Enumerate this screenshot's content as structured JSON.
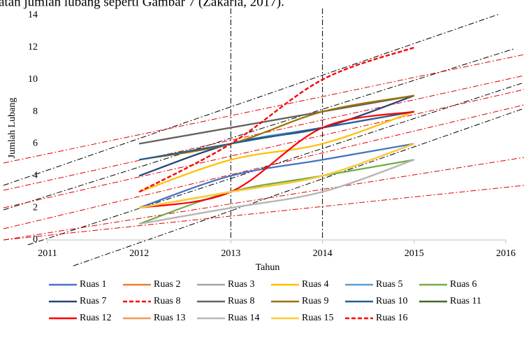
{
  "header_text": "atan jumlah lubang seperti Gambar 7 (Zakaria, 2017).",
  "chart_data": {
    "type": "line",
    "x_label": "Tahun",
    "y_label": "Jumlah Lubang",
    "x": [
      2012,
      2013,
      2014,
      2015
    ],
    "xlim": [
      2011,
      2016
    ],
    "xticks": [
      2011,
      2012,
      2013,
      2014,
      2015,
      2016
    ],
    "ylim": [
      0,
      14
    ],
    "yticks": [
      0,
      2,
      4,
      6,
      8,
      10,
      12,
      14
    ],
    "vlines": [
      2013,
      2014
    ],
    "smooth": true,
    "series": [
      {
        "name": "Ruas 1",
        "color": "#4472c4",
        "values": [
          2,
          4,
          5,
          6
        ]
      },
      {
        "name": "Ruas 2",
        "color": "#ed7d31",
        "values": [
          6,
          7,
          8,
          9
        ]
      },
      {
        "name": "Ruas 3",
        "color": "#a5a5a5",
        "values": [
          1,
          2,
          3,
          5
        ]
      },
      {
        "name": "Ruas 4",
        "color": "#ffc000",
        "values": [
          3,
          5,
          6,
          8
        ]
      },
      {
        "name": "Ruas 5",
        "color": "#5b9bd5",
        "values": [
          4,
          6,
          7,
          8
        ]
      },
      {
        "name": "Ruas 6",
        "color": "#70ad47",
        "values": [
          1,
          3,
          4,
          5
        ]
      },
      {
        "name": "Ruas 7",
        "color": "#264478",
        "values": [
          4,
          6,
          7,
          9
        ]
      },
      {
        "name": "Ruas 8",
        "color": "#ff0000",
        "line_style": "dashed",
        "values": [
          3,
          6,
          10,
          12
        ]
      },
      {
        "name": "Ruas 8",
        "color": "#636363",
        "values": [
          6,
          7,
          8,
          9
        ]
      },
      {
        "name": "Ruas 9",
        "color": "#997300",
        "values": [
          5,
          6,
          8,
          9
        ]
      },
      {
        "name": "Ruas 10",
        "color": "#255e91",
        "values": [
          5,
          6,
          7,
          8
        ]
      },
      {
        "name": "Ruas 11",
        "color": "#43682b",
        "values": [
          2,
          3,
          4,
          6
        ]
      },
      {
        "name": "Ruas 12",
        "color": "#ff0000",
        "values": [
          2,
          3,
          7,
          8
        ]
      },
      {
        "name": "Ruas 13",
        "color": "#f1975a",
        "values": [
          2,
          3,
          4,
          6
        ]
      },
      {
        "name": "Ruas 14",
        "color": "#b7b7b7",
        "values": [
          1,
          2,
          3,
          5
        ]
      },
      {
        "name": "Ruas 15",
        "color": "#ffcd33",
        "values": [
          2,
          3,
          4,
          6
        ]
      },
      {
        "name": "Ruas 16",
        "color": "#ff0000",
        "line_style": "dashed",
        "values": [
          3,
          6,
          10,
          12
        ]
      }
    ]
  }
}
